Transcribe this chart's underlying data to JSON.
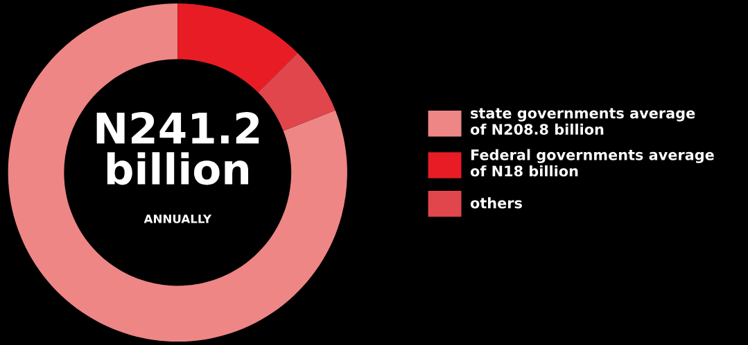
{
  "chart_data": {
    "type": "donut",
    "categories": [
      "state governments average\nof N208.8 billion",
      "Federal governments average\nof N18 billion",
      "others"
    ],
    "values": [
      81,
      12.5,
      6.5
    ],
    "colors": [
      "#ee8686",
      "#e81c24",
      "#e0464b"
    ],
    "annotations": [
      "N241.2\nbillion",
      "ANNUALLY"
    ],
    "legend": "right"
  }
}
